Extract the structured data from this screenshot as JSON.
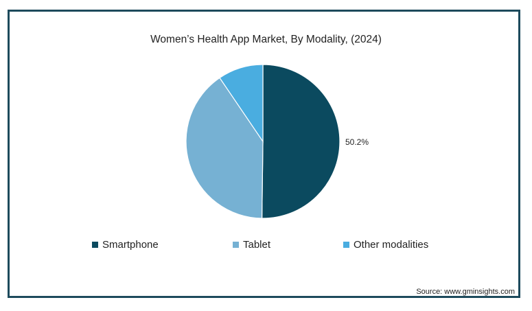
{
  "chart_data": {
    "type": "pie",
    "title": "Women’s Health App Market, By Modality, (2024)",
    "start_angle_deg": 0,
    "direction": "clockwise",
    "slices": [
      {
        "label": "Smartphone",
        "value": 50.2,
        "value_label": "50.2%",
        "color": "#0b4a5f"
      },
      {
        "label": "Tablet",
        "value": 40.3,
        "value_label": "",
        "color": "#76b1d3"
      },
      {
        "label": "Other modalities",
        "value": 9.5,
        "value_label": "",
        "color": "#4aade0"
      }
    ],
    "legend_position": "bottom",
    "source": "Source: www.gminsights.com"
  }
}
